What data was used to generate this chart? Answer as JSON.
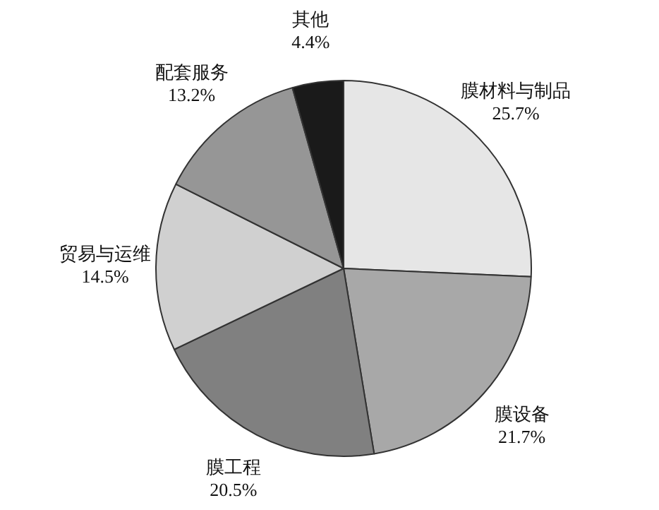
{
  "chart_data": {
    "type": "pie",
    "categories": [
      "膜材料与制品",
      "膜设备",
      "膜工程",
      "贸易与运维",
      "配套服务",
      "其他"
    ],
    "values": [
      25.7,
      21.7,
      20.5,
      14.5,
      13.2,
      4.4
    ],
    "colors": [
      "#e6e6e6",
      "#a8a8a8",
      "#808080",
      "#d0d0d0",
      "#969696",
      "#1a1a1a"
    ],
    "value_labels": [
      "25.7%",
      "21.7%",
      "20.5%",
      "14.5%",
      "13.2%",
      "4.4%"
    ],
    "legend": false
  }
}
